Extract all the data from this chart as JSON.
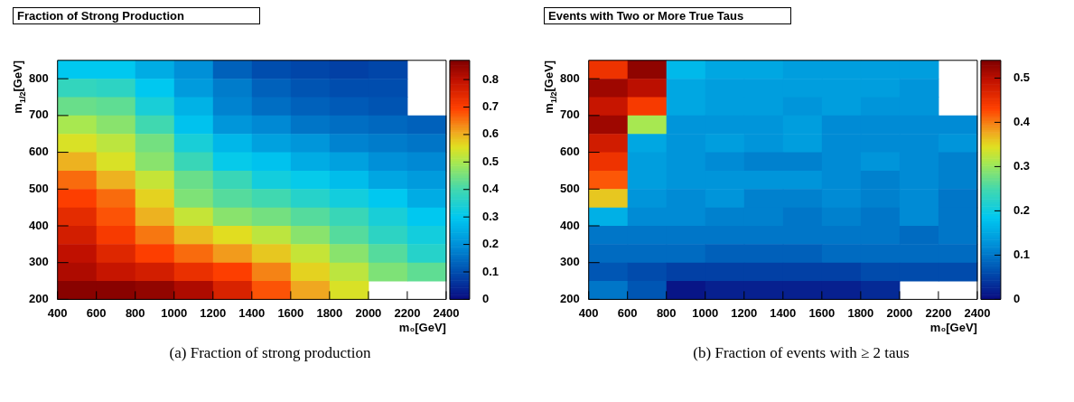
{
  "chart_data": [
    {
      "type": "heatmap",
      "title": "Fraction of Strong Production",
      "xlabel": "m₀[GeV]",
      "ylabel": "m$_{1/2}$[GeV]",
      "x": [
        500,
        700,
        900,
        1100,
        1300,
        1500,
        1700,
        1900,
        2100,
        2300
      ],
      "y": [
        825,
        775,
        725,
        675,
        625,
        575,
        525,
        475,
        425,
        375,
        325,
        275,
        225
      ],
      "xlim": [
        400,
        2400
      ],
      "xticks": [
        400,
        600,
        800,
        1000,
        1200,
        1400,
        1600,
        1800,
        2000,
        2200,
        2400
      ],
      "ylim": [
        200,
        850
      ],
      "yticks": [
        200,
        300,
        400,
        500,
        600,
        700,
        800
      ],
      "clim": [
        0,
        0.87
      ],
      "cticks": [
        0,
        0.1,
        0.2,
        0.3,
        0.4,
        0.5,
        0.6,
        0.7,
        0.8
      ],
      "cells": [
        [
          0.3,
          0.3,
          0.25,
          0.2,
          0.13,
          0.1,
          0.09,
          0.08,
          0.09,
          null
        ],
        [
          0.38,
          0.37,
          0.3,
          0.22,
          0.17,
          0.13,
          0.11,
          0.1,
          0.1,
          null
        ],
        [
          0.44,
          0.43,
          0.34,
          0.26,
          0.18,
          0.15,
          0.13,
          0.12,
          0.11,
          null
        ],
        [
          0.5,
          0.47,
          0.4,
          0.29,
          0.21,
          0.19,
          0.16,
          0.15,
          0.14,
          0.13
        ],
        [
          0.55,
          0.52,
          0.45,
          0.34,
          0.27,
          0.23,
          0.21,
          0.18,
          0.17,
          0.16
        ],
        [
          0.6,
          0.55,
          0.47,
          0.39,
          0.31,
          0.29,
          0.25,
          0.23,
          0.2,
          0.19
        ],
        [
          0.66,
          0.6,
          0.53,
          0.44,
          0.39,
          0.33,
          0.31,
          0.28,
          0.24,
          0.22
        ],
        [
          0.7,
          0.66,
          0.57,
          0.46,
          0.42,
          0.4,
          0.36,
          0.33,
          0.3,
          0.25
        ],
        [
          0.74,
          0.68,
          0.6,
          0.53,
          0.47,
          0.45,
          0.42,
          0.39,
          0.34,
          0.3
        ],
        [
          0.77,
          0.71,
          0.65,
          0.59,
          0.56,
          0.52,
          0.47,
          0.42,
          0.37,
          0.33
        ],
        [
          0.8,
          0.75,
          0.7,
          0.66,
          0.62,
          0.58,
          0.53,
          0.47,
          0.42,
          0.36
        ],
        [
          0.82,
          0.79,
          0.77,
          0.73,
          0.7,
          0.64,
          0.57,
          0.52,
          0.46,
          0.43
        ],
        [
          0.86,
          0.86,
          0.85,
          0.82,
          0.76,
          0.68,
          0.61,
          0.55,
          null,
          null
        ]
      ],
      "annotations": [
        "(a) Fraction of strong production"
      ]
    },
    {
      "type": "heatmap",
      "title": "Events with Two or More True Taus",
      "xlabel": "m₀[GeV]",
      "ylabel": "m$_{1/2}$[GeV]",
      "x": [
        500,
        700,
        900,
        1100,
        1300,
        1500,
        1700,
        1900,
        2100,
        2300
      ],
      "y": [
        825,
        775,
        725,
        675,
        625,
        575,
        525,
        475,
        425,
        375,
        325,
        275,
        225
      ],
      "xlim": [
        400,
        2400
      ],
      "xticks": [
        400,
        600,
        800,
        1000,
        1200,
        1400,
        1600,
        1800,
        2000,
        2200,
        2400
      ],
      "ylim": [
        200,
        850
      ],
      "yticks": [
        200,
        300,
        400,
        500,
        600,
        700,
        800
      ],
      "clim": [
        0,
        0.54
      ],
      "cticks": [
        0,
        0.1,
        0.2,
        0.3,
        0.4,
        0.5
      ],
      "cells": [
        [
          0.45,
          0.53,
          0.17,
          0.15,
          0.15,
          0.14,
          0.14,
          0.14,
          0.14,
          null
        ],
        [
          0.52,
          0.5,
          0.15,
          0.14,
          0.14,
          0.14,
          0.14,
          0.14,
          0.13,
          null
        ],
        [
          0.49,
          0.44,
          0.15,
          0.14,
          0.14,
          0.13,
          0.14,
          0.13,
          0.13,
          null
        ],
        [
          0.52,
          0.31,
          0.13,
          0.13,
          0.13,
          0.14,
          0.12,
          0.12,
          0.12,
          0.12
        ],
        [
          0.48,
          0.15,
          0.13,
          0.14,
          0.13,
          0.14,
          0.12,
          0.12,
          0.12,
          0.13
        ],
        [
          0.45,
          0.14,
          0.13,
          0.12,
          0.11,
          0.11,
          0.12,
          0.13,
          0.12,
          0.11
        ],
        [
          0.42,
          0.14,
          0.13,
          0.13,
          0.13,
          0.13,
          0.12,
          0.11,
          0.12,
          0.11
        ],
        [
          0.36,
          0.13,
          0.12,
          0.13,
          0.11,
          0.11,
          0.12,
          0.11,
          0.12,
          0.1
        ],
        [
          0.16,
          0.12,
          0.12,
          0.11,
          0.11,
          0.1,
          0.11,
          0.1,
          0.12,
          0.1
        ],
        [
          0.1,
          0.1,
          0.1,
          0.1,
          0.1,
          0.1,
          0.1,
          0.1,
          0.09,
          0.1
        ],
        [
          0.09,
          0.09,
          0.09,
          0.08,
          0.08,
          0.08,
          0.09,
          0.09,
          0.09,
          0.09
        ],
        [
          0.07,
          0.06,
          0.05,
          0.05,
          0.05,
          0.05,
          0.05,
          0.06,
          0.06,
          0.06
        ],
        [
          0.1,
          0.07,
          0.01,
          0.02,
          0.02,
          0.02,
          0.02,
          0.03,
          null,
          null
        ]
      ],
      "annotations": [
        "(b) Fraction of events with ≥ 2 taus"
      ]
    }
  ]
}
